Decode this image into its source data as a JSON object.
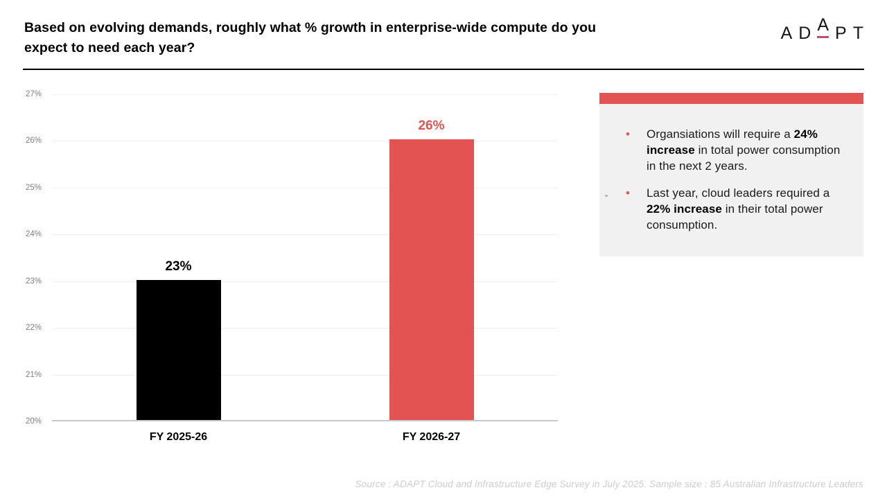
{
  "header": {
    "title": "Based on evolving demands, roughly what % growth in enterprise-wide compute do you expect to need each year?"
  },
  "logo": {
    "letters": [
      "A",
      "D",
      "A",
      "P",
      "T"
    ],
    "underline_color": "#c05065"
  },
  "chart_data": {
    "type": "bar",
    "title": "Based on evolving demands, roughly what % growth in enterprise-wide compute do you expect to need each year?",
    "categories": [
      "FY 2025-26",
      "FY 2026-27"
    ],
    "values": [
      23,
      26
    ],
    "value_labels": [
      "23%",
      "26%"
    ],
    "bar_colors": [
      "#000000",
      "#e25352"
    ],
    "value_label_colors": [
      "#000000",
      "#e25352"
    ],
    "xlabel": "",
    "ylabel": "",
    "ylim": [
      20,
      27
    ],
    "yticks": [
      "20%",
      "21%",
      "22%",
      "23%",
      "24%",
      "25%",
      "26%",
      "27%"
    ],
    "grid": true,
    "legend_position": "none"
  },
  "callout": {
    "accent_color": "#e25352",
    "bullets": [
      {
        "pre": "Organsiations will require a ",
        "bold": "24% increase",
        "post": " in total power consumption in the next 2 years."
      },
      {
        "pre": "Last year, cloud leaders required a ",
        "bold": "22% increase",
        "post": " in their total power consumption."
      }
    ]
  },
  "footer": {
    "source_text": "Source : ADAPT Cloud and Infrastructure Edge Survey in July 2025. Sample size : 85 Australian Infrastructure Leaders"
  }
}
